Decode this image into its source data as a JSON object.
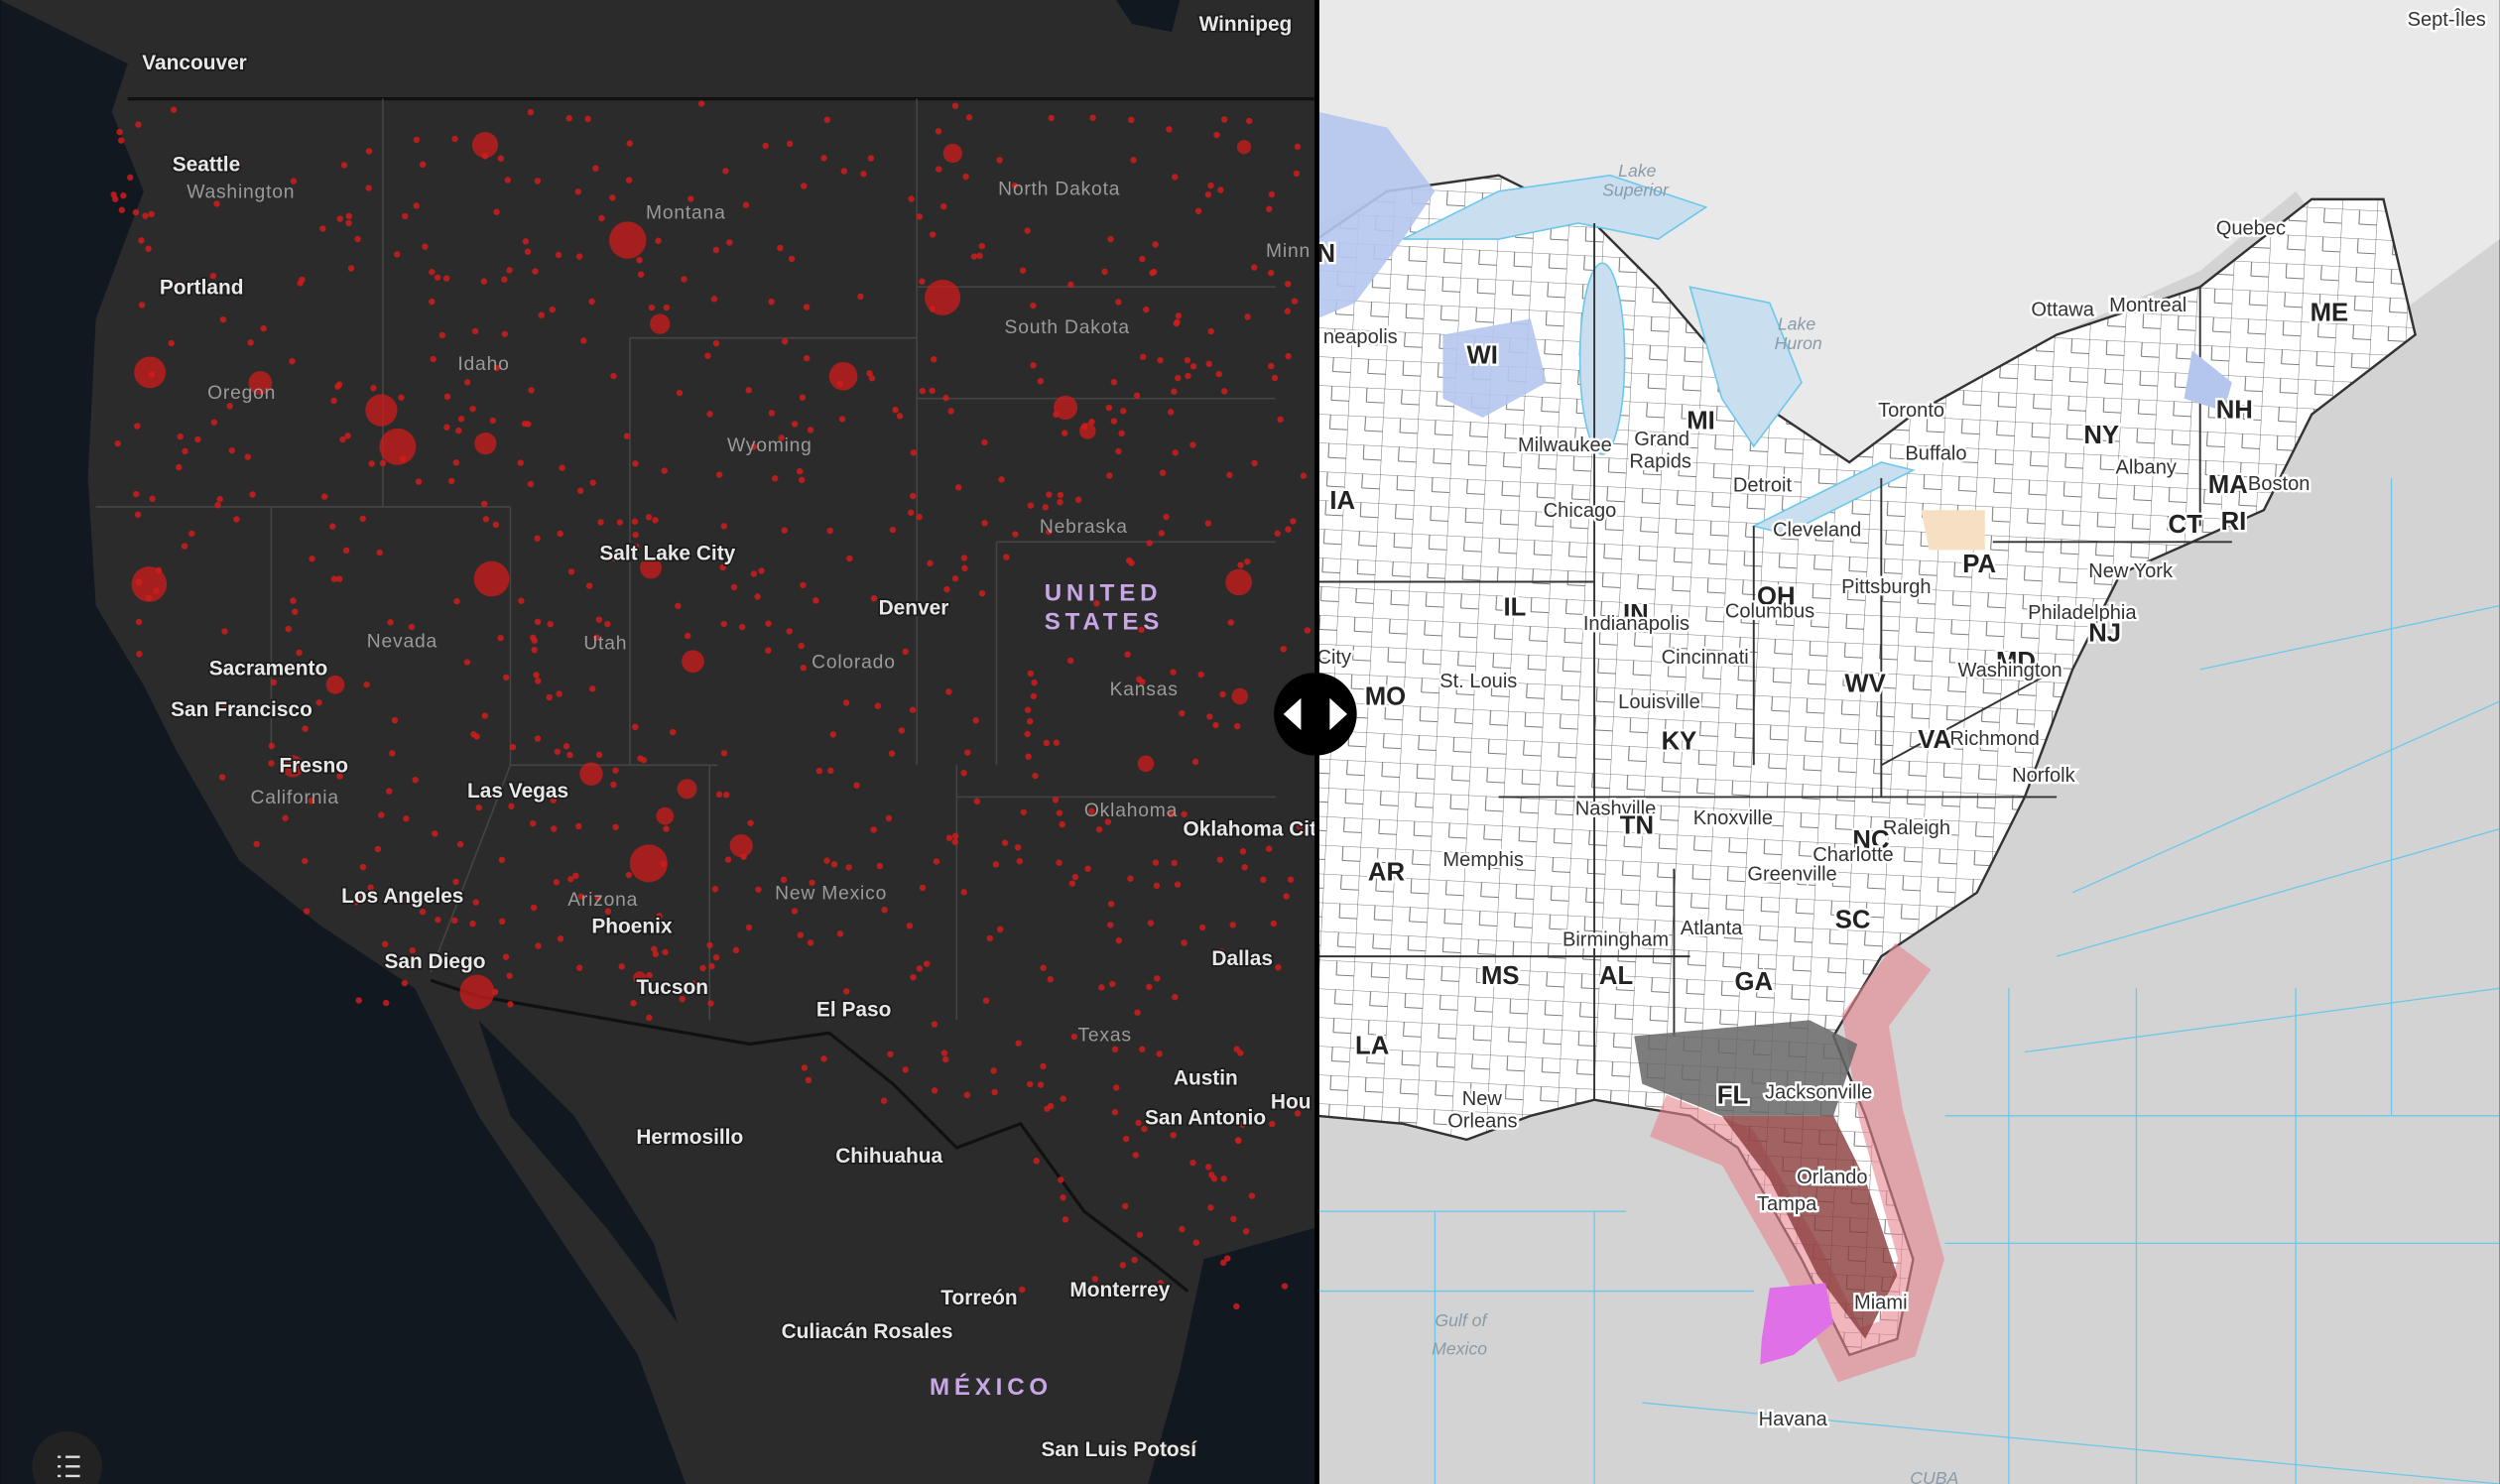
{
  "left_map": {
    "labels": [
      "Vancouver",
      "Winnipeg",
      "Seattle",
      "Washington",
      "Portland",
      "Oregon",
      "Montana",
      "North Dakota",
      "Minn",
      "South Dakota",
      "Idaho",
      "Wyoming",
      "Nebraska",
      "Salt Lake City",
      "UNITED",
      "STATES",
      "Denver",
      "Nevada",
      "Utah",
      "Colorado",
      "Sacramento",
      "San Francisco",
      "Kansas",
      "Fresno",
      "California",
      "Las Vegas",
      "Oklahoma",
      "Oklahoma City",
      "Los Angeles",
      "Arizona",
      "New Mexico",
      "Phoenix",
      "San Diego",
      "Tucson",
      "El Paso",
      "Dallas",
      "Texas",
      "Austin",
      "Hou",
      "San Antonio",
      "Hermosillo",
      "Chihuahua",
      "Monterrey",
      "Torreón",
      "Culiacán Rosales",
      "MÉXICO",
      "San Luis Potosí"
    ]
  },
  "right_map": {
    "labels": [
      "Sept-Îles",
      "Lake",
      "Superior",
      "Quebec",
      "Ottawa",
      "Montreal",
      "ME",
      "N",
      "neapolis",
      "WI",
      "Lake",
      "Huron",
      "Toronto",
      "NH",
      "NY",
      "MI",
      "Buffalo",
      "Albany",
      "Milwaukee",
      "Grand",
      "Rapids",
      "Boston",
      "MA",
      "Detroit",
      "IA",
      "Chicago",
      "CT",
      "RI",
      "Cleveland",
      "PA",
      "New York",
      "Pittsburgh",
      "OH",
      "Columbus",
      "IN",
      "IL",
      "Indianapolis",
      "Philadelphia",
      "NJ",
      "Cincinnati",
      "MD",
      "City",
      "Washington",
      "MO",
      "St. Louis",
      "WV",
      "Louisville",
      "Richmond",
      "VA",
      "KY",
      "Norfolk",
      "Nashville",
      "Knoxville",
      "TN",
      "Raleigh",
      "NC",
      "Charlotte",
      "Memphis",
      "AR",
      "Greenville",
      "SC",
      "Atlanta",
      "Birmingham",
      "AL",
      "MS",
      "GA",
      "LA",
      "FL",
      "Jacksonville",
      "New",
      "Orleans",
      "Orlando",
      "Tampa",
      "Miami",
      "Gulf of",
      "Mexico",
      "Havana",
      "CUBA"
    ]
  }
}
